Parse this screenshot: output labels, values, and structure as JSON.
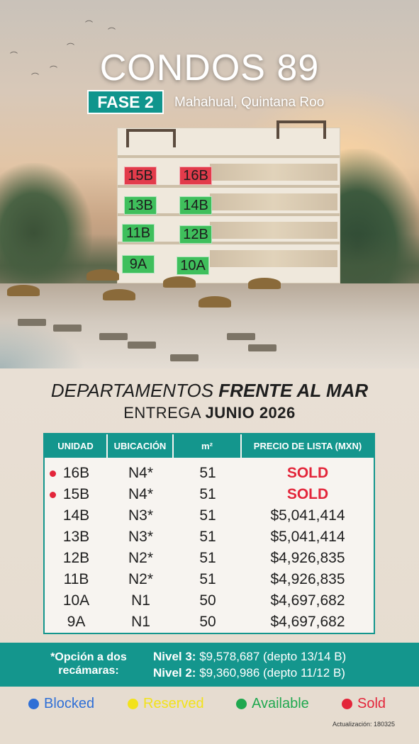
{
  "header": {
    "title": "CONDOS 89",
    "phase": "FASE 2",
    "location": "Mahahual, Quintana Roo"
  },
  "building_units": [
    {
      "label": "15B",
      "status": "sold"
    },
    {
      "label": "16B",
      "status": "sold"
    },
    {
      "label": "13B",
      "status": "available"
    },
    {
      "label": "14B",
      "status": "available"
    },
    {
      "label": "11B",
      "status": "available"
    },
    {
      "label": "12B",
      "status": "available"
    },
    {
      "label": "9A",
      "status": "available"
    },
    {
      "label": "10A",
      "status": "available"
    }
  ],
  "headline": {
    "part1": "DEPARTAMENTOS ",
    "part2": "FRENTE AL MAR"
  },
  "delivery": {
    "prefix": "ENTREGA ",
    "date": "JUNIO 2026"
  },
  "table": {
    "headers": [
      "UNIDAD",
      "UBICACIÓN",
      "m²",
      "PRECIO DE LISTA (MXN)"
    ],
    "rows": [
      {
        "unit": "16B",
        "location": "N4*",
        "m2": "51",
        "price": "SOLD",
        "sold": true
      },
      {
        "unit": "15B",
        "location": "N4*",
        "m2": "51",
        "price": "SOLD",
        "sold": true
      },
      {
        "unit": "14B",
        "location": "N3*",
        "m2": "51",
        "price": "$5,041,414",
        "sold": false
      },
      {
        "unit": "13B",
        "location": "N3*",
        "m2": "51",
        "price": "$5,041,414",
        "sold": false
      },
      {
        "unit": "12B",
        "location": "N2*",
        "m2": "51",
        "price": "$4,926,835",
        "sold": false
      },
      {
        "unit": "11B",
        "location": "N2*",
        "m2": "51",
        "price": "$4,926,835",
        "sold": false
      },
      {
        "unit": "10A",
        "location": "N1",
        "m2": "50",
        "price": "$4,697,682",
        "sold": false
      },
      {
        "unit": "9A",
        "location": "N1",
        "m2": "50",
        "price": "$4,697,682",
        "sold": false
      }
    ]
  },
  "option": {
    "label_line1": "*Opción a dos",
    "label_line2": "recámaras:",
    "level3_label": "Nivel 3:",
    "level3_value": " $9,578,687 (depto 13/14 B)",
    "level2_label": "Nivel 2:",
    "level2_value": " $9,360,986 (depto 11/12 B)"
  },
  "legend": [
    {
      "label": "Blocked",
      "color": "#2f6fd6"
    },
    {
      "label": "Reserved",
      "color": "#f2e21b"
    },
    {
      "label": "Available",
      "color": "#1fa84f"
    },
    {
      "label": "Sold",
      "color": "#e3253a"
    }
  ],
  "update": "Actualización: 180325",
  "colors": {
    "teal": "#14968d",
    "sold_red": "#e3253a",
    "available_green": "#3fbf5c"
  }
}
